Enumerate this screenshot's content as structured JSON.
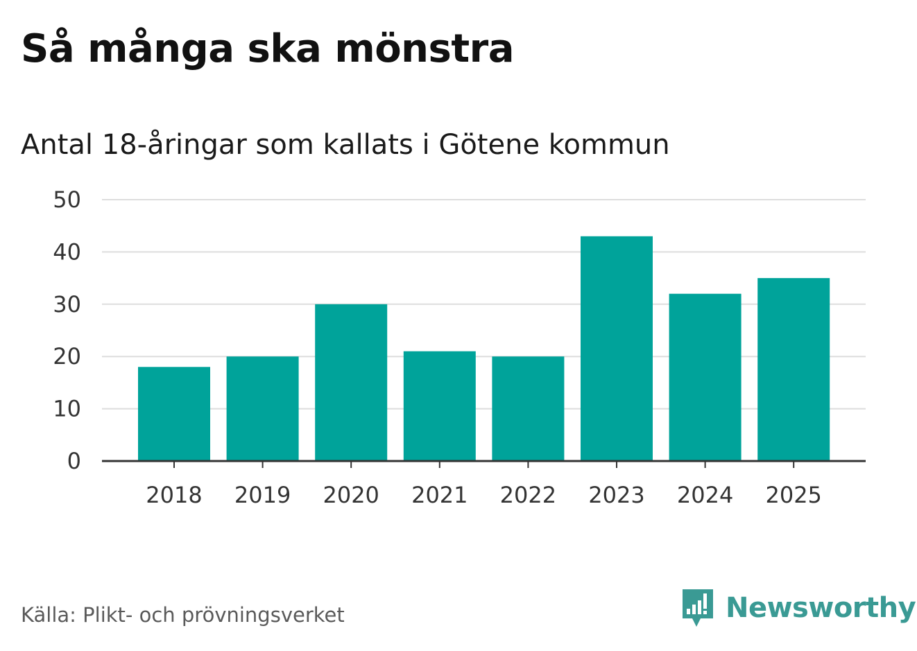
{
  "title": "Så många ska mönstra",
  "subtitle": "Antal 18-åringar som kallats i Götene kommun",
  "source": "Källa: Plikt- och prövningsverket",
  "logo": {
    "text": "Newsworthy",
    "icon": "newsworthy-logo-icon"
  },
  "colors": {
    "bar": "#00A39A",
    "grid": "#dddddd",
    "axis": "#333333",
    "logo": "#3a9a94"
  },
  "chart_data": {
    "type": "bar",
    "title": "Så många ska mönstra",
    "subtitle": "Antal 18-åringar som kallats i Götene kommun",
    "categories": [
      "2018",
      "2019",
      "2020",
      "2021",
      "2022",
      "2023",
      "2024",
      "2025"
    ],
    "values": [
      18,
      20,
      30,
      21,
      20,
      43,
      32,
      35
    ],
    "xlabel": "",
    "ylabel": "",
    "ylim": [
      0,
      50
    ],
    "yticks": [
      0,
      10,
      20,
      30,
      40,
      50
    ],
    "grid": true,
    "legend": "none"
  }
}
